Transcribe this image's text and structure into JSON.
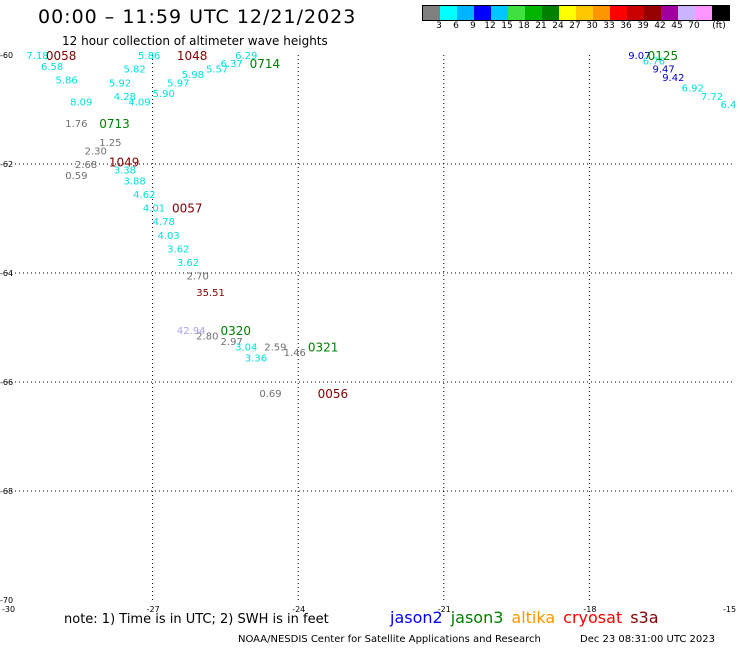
{
  "header": {
    "title": "00:00 – 11:59 UTC 12/21/2023",
    "subtitle": "12 hour collection of altimeter wave heights"
  },
  "legend": {
    "colors": [
      "#808080",
      "#00ffff",
      "#00b4ff",
      "#0000ff",
      "#00c8ff",
      "#40e040",
      "#00b400",
      "#008000",
      "#ffff00",
      "#ffc800",
      "#ff9600",
      "#ff0000",
      "#c80000",
      "#960000",
      "#a000a0",
      "#c8b4ff",
      "#ff96ff",
      "#000000"
    ],
    "labels": [
      "3",
      "6",
      "9",
      "12",
      "15",
      "18",
      "21",
      "24",
      "27",
      "30",
      "33",
      "36",
      "39",
      "42",
      "45",
      "70",
      "(ft)"
    ]
  },
  "axes": {
    "lat_labels": [
      "-60",
      "-62",
      "-64",
      "-66",
      "-68",
      "-70"
    ],
    "lon_labels": [
      "-30",
      "-27",
      "-24",
      "-21",
      "-18",
      "-15"
    ]
  },
  "map_data": {
    "color_scale": {
      "cyan": "#00e0e0",
      "gray": "#707070",
      "darkred": "#800000",
      "green": "#008000",
      "blue": "#0000c0",
      "lavender": "#b0a0f0"
    },
    "readings": [
      {
        "text": "7.18",
        "lon": -29.6,
        "lat": -60.0,
        "color": "cyan"
      },
      {
        "text": "6.58",
        "lon": -29.3,
        "lat": -60.2,
        "color": "cyan"
      },
      {
        "text": "5.86",
        "lon": -29.0,
        "lat": -60.45,
        "color": "cyan"
      },
      {
        "text": "8.09",
        "lon": -28.7,
        "lat": -60.85,
        "color": "cyan"
      },
      {
        "text": "1.76",
        "lon": -28.8,
        "lat": -61.25,
        "color": "gray"
      },
      {
        "text": "2.30",
        "lon": -28.4,
        "lat": -61.75,
        "color": "gray"
      },
      {
        "text": "1.25",
        "lon": -28.1,
        "lat": -61.6,
        "color": "gray"
      },
      {
        "text": "2.68",
        "lon": -28.6,
        "lat": -62.0,
        "color": "gray"
      },
      {
        "text": "0.59",
        "lon": -28.8,
        "lat": -62.2,
        "color": "gray"
      },
      {
        "text": "3.38",
        "lon": -27.8,
        "lat": -62.1,
        "color": "cyan"
      },
      {
        "text": "3.88",
        "lon": -27.6,
        "lat": -62.3,
        "color": "cyan"
      },
      {
        "text": "4.62",
        "lon": -27.4,
        "lat": -62.55,
        "color": "cyan"
      },
      {
        "text": "4.01",
        "lon": -27.2,
        "lat": -62.8,
        "color": "cyan"
      },
      {
        "text": "4.78",
        "lon": -27.0,
        "lat": -63.05,
        "color": "cyan"
      },
      {
        "text": "4.03",
        "lon": -26.9,
        "lat": -63.3,
        "color": "cyan"
      },
      {
        "text": "3.62",
        "lon": -26.7,
        "lat": -63.55,
        "color": "cyan"
      },
      {
        "text": "3.62",
        "lon": -26.5,
        "lat": -63.8,
        "color": "cyan"
      },
      {
        "text": "2.70",
        "lon": -26.3,
        "lat": -64.05,
        "color": "gray"
      },
      {
        "text": "35.51",
        "lon": -26.1,
        "lat": -64.35,
        "color": "darkred"
      },
      {
        "text": "5.86",
        "lon": -27.3,
        "lat": -60.0,
        "color": "cyan"
      },
      {
        "text": "5.82",
        "lon": -27.6,
        "lat": -60.25,
        "color": "cyan"
      },
      {
        "text": "5.92",
        "lon": -27.9,
        "lat": -60.5,
        "color": "cyan"
      },
      {
        "text": "4.28",
        "lon": -27.8,
        "lat": -60.75,
        "color": "cyan"
      },
      {
        "text": "4.09",
        "lon": -27.5,
        "lat": -60.85,
        "color": "cyan"
      },
      {
        "text": "5.97",
        "lon": -26.7,
        "lat": -60.5,
        "color": "cyan"
      },
      {
        "text": "5.90",
        "lon": -27.0,
        "lat": -60.7,
        "color": "cyan"
      },
      {
        "text": "5.98",
        "lon": -26.4,
        "lat": -60.35,
        "color": "cyan"
      },
      {
        "text": "5.57",
        "lon": -25.9,
        "lat": -60.25,
        "color": "cyan"
      },
      {
        "text": "6.37",
        "lon": -25.6,
        "lat": -60.15,
        "color": "cyan"
      },
      {
        "text": "6.29",
        "lon": -25.3,
        "lat": -60.0,
        "color": "cyan"
      },
      {
        "text": "9.07",
        "lon": -17.2,
        "lat": -60.0,
        "color": "blue"
      },
      {
        "text": "6.76",
        "lon": -16.9,
        "lat": -60.1,
        "color": "cyan"
      },
      {
        "text": "9.47",
        "lon": -16.7,
        "lat": -60.25,
        "color": "blue"
      },
      {
        "text": "9.42",
        "lon": -16.5,
        "lat": -60.4,
        "color": "blue"
      },
      {
        "text": "6.92",
        "lon": -16.1,
        "lat": -60.6,
        "color": "cyan"
      },
      {
        "text": "7.72",
        "lon": -15.7,
        "lat": -60.75,
        "color": "cyan"
      },
      {
        "text": "6.4",
        "lon": -15.3,
        "lat": -60.9,
        "color": "cyan"
      },
      {
        "text": "42.94",
        "lon": -26.5,
        "lat": -65.05,
        "color": "lavender"
      },
      {
        "text": "2.80",
        "lon": -26.1,
        "lat": -65.15,
        "color": "gray"
      },
      {
        "text": "2.97",
        "lon": -25.6,
        "lat": -65.25,
        "color": "gray"
      },
      {
        "text": "3.04",
        "lon": -25.3,
        "lat": -65.35,
        "color": "cyan"
      },
      {
        "text": "3.36",
        "lon": -25.1,
        "lat": -65.55,
        "color": "cyan"
      },
      {
        "text": "2.59",
        "lon": -24.7,
        "lat": -65.35,
        "color": "gray"
      },
      {
        "text": "1.46",
        "lon": -24.3,
        "lat": -65.45,
        "color": "gray"
      },
      {
        "text": "0.69",
        "lon": -24.8,
        "lat": -66.2,
        "color": "gray"
      }
    ],
    "passes": [
      {
        "text": "0058",
        "lon": -29.2,
        "lat": -60.0,
        "color": "darkred"
      },
      {
        "text": "1048",
        "lon": -26.5,
        "lat": -60.0,
        "color": "darkred"
      },
      {
        "text": "0714",
        "lon": -25.0,
        "lat": -60.15,
        "color": "green"
      },
      {
        "text": "0713",
        "lon": -28.1,
        "lat": -61.25,
        "color": "green"
      },
      {
        "text": "1049",
        "lon": -27.9,
        "lat": -61.95,
        "color": "darkred"
      },
      {
        "text": "0057",
        "lon": -26.6,
        "lat": -62.8,
        "color": "darkred"
      },
      {
        "text": "0125",
        "lon": -16.8,
        "lat": -60.0,
        "color": "green"
      },
      {
        "text": "0320",
        "lon": -25.6,
        "lat": -65.05,
        "color": "green"
      },
      {
        "text": "0321",
        "lon": -23.8,
        "lat": -65.35,
        "color": "green"
      },
      {
        "text": "0056",
        "lon": -23.6,
        "lat": -66.2,
        "color": "darkred"
      }
    ]
  },
  "footer": {
    "note": "note: 1) Time is in UTC; 2) SWH is in feet",
    "satellites": [
      {
        "name": "jason2",
        "color": "#0000ff"
      },
      {
        "name": "jason3",
        "color": "#008000"
      },
      {
        "name": "altika",
        "color": "#ff9600"
      },
      {
        "name": "cryosat",
        "color": "#ff0000"
      },
      {
        "name": "s3a",
        "color": "#800000"
      }
    ],
    "credit": "NOAA/NESDIS Center for Satellite Applications and Research",
    "timestamp": "Dec 23 08:31:00 UTC 2023"
  }
}
